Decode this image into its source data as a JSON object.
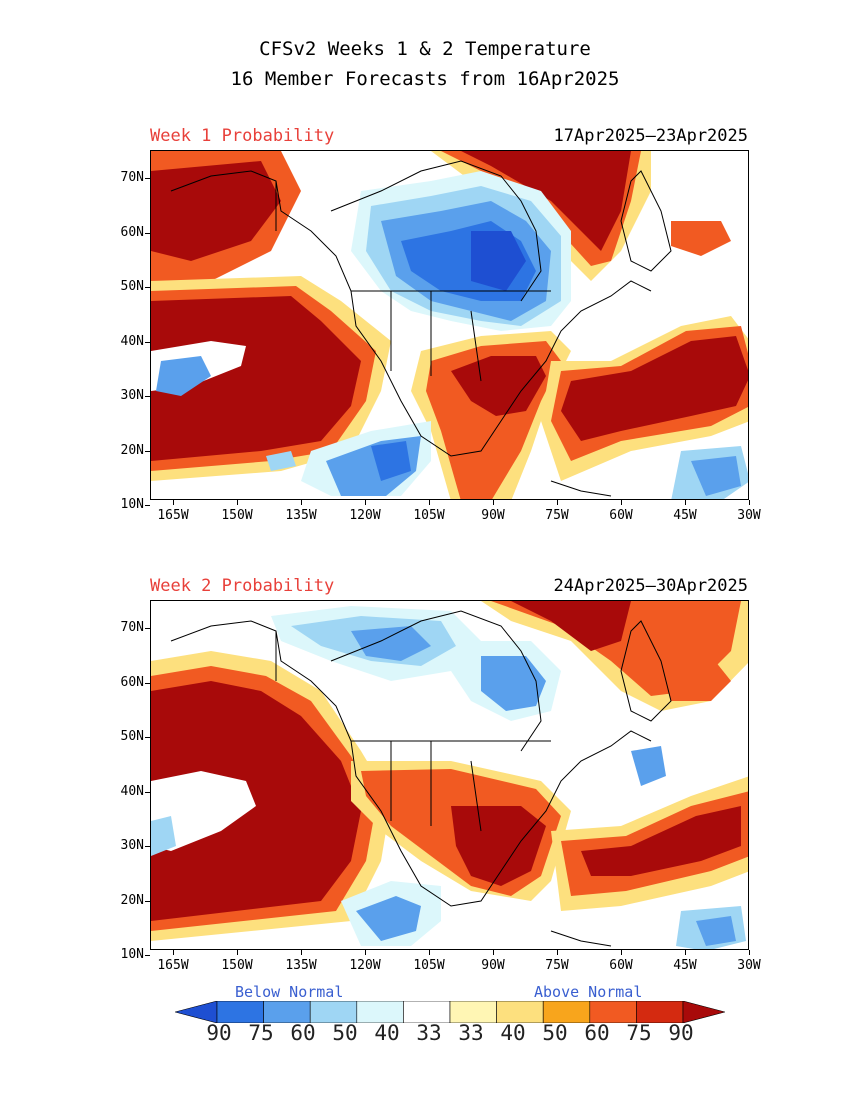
{
  "title_line1": "CFSv2 Weeks 1 & 2 Temperature",
  "title_line2": "16 Member Forecasts from 16Apr2025",
  "panels": [
    {
      "label": "Week 1 Probability",
      "range": "17Apr2025–23Apr2025"
    },
    {
      "label": "Week 2 Probability",
      "range": "24Apr2025–30Apr2025"
    }
  ],
  "lat_ticks": [
    "70N",
    "60N",
    "50N",
    "40N",
    "30N",
    "20N",
    "10N"
  ],
  "lon_ticks": [
    "165W",
    "150W",
    "135W",
    "120W",
    "105W",
    "90W",
    "75W",
    "60W",
    "45W",
    "30W"
  ],
  "legend": {
    "below_label": "Below Normal",
    "above_label": "Above Normal",
    "labels": [
      "90",
      "75",
      "60",
      "50",
      "40",
      "33",
      "33",
      "40",
      "50",
      "60",
      "75",
      "90"
    ],
    "colors": {
      "below": [
        "#1e4fd2",
        "#2d74e3",
        "#5aa0ec",
        "#9fd6f4",
        "#dcf7fb"
      ],
      "neutral": "#ffffff",
      "above": [
        "#fff6b4",
        "#fde07e",
        "#f8a51c",
        "#f15a22",
        "#d42a10",
        "#a80a0a"
      ]
    }
  }
}
